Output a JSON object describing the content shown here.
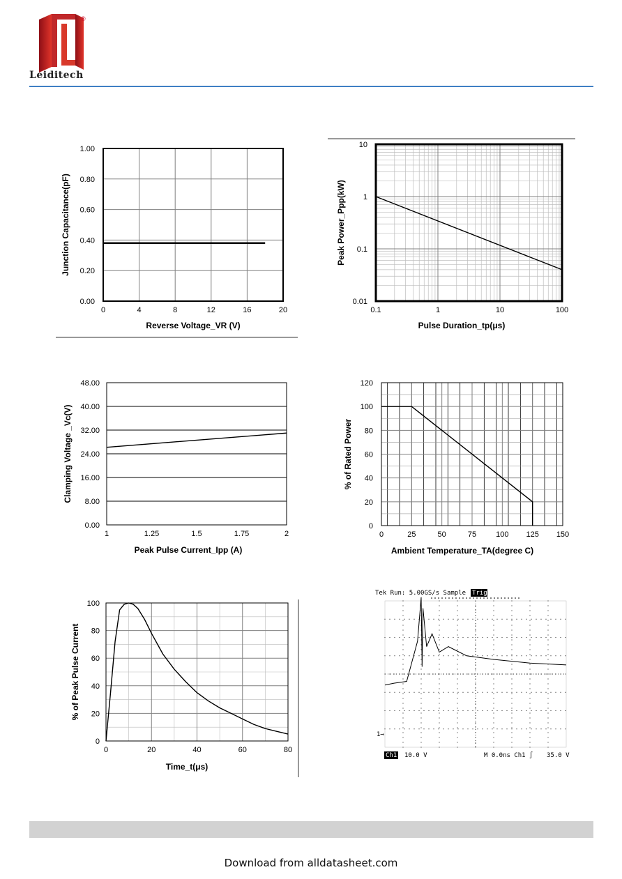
{
  "header": {
    "brand": "Leiditech",
    "registered_mark": "®",
    "logo_color": "#c8102e",
    "rule_color": "#3f7fc4"
  },
  "footer": {
    "download_text": "Download from alldatasheet.com",
    "bar_color": "#d2d2d2"
  },
  "chart_data": [
    {
      "id": "capacitance",
      "type": "line",
      "xlabel": "Reverse Voltage_VR (V)",
      "ylabel": "Junction Capacitance(pF)",
      "xlim": [
        0,
        20
      ],
      "ylim": [
        0,
        1
      ],
      "xticks": [
        0,
        4,
        8,
        12,
        16,
        20
      ],
      "xtick_labels": [
        "0",
        "4",
        "8",
        "12",
        "16",
        "20"
      ],
      "yticks": [
        0,
        0.2,
        0.4,
        0.6,
        0.8,
        1.0
      ],
      "ytick_labels": [
        "0.00",
        "0.20",
        "0.40",
        "0.60",
        "0.80",
        "1.00"
      ],
      "grid": true,
      "series": [
        {
          "x": [
            0,
            18
          ],
          "y": [
            0.38,
            0.38
          ]
        }
      ]
    },
    {
      "id": "peak_power",
      "type": "line",
      "xlabel": "Pulse Duration_tp(μs)",
      "ylabel": "Peak  Power_Ppp(kW)",
      "xscale": "log",
      "yscale": "log",
      "xlim": [
        0.1,
        100
      ],
      "ylim": [
        0.01,
        10
      ],
      "xticks": [
        0.1,
        1,
        10,
        100
      ],
      "xtick_labels": [
        "0.1",
        "1",
        "10",
        "100"
      ],
      "yticks": [
        0.01,
        0.1,
        1,
        10
      ],
      "ytick_labels": [
        "0.01",
        "0.1",
        "1",
        "10"
      ],
      "grid": true,
      "series": [
        {
          "x": [
            0.1,
            100
          ],
          "y": [
            1,
            0.04
          ]
        }
      ]
    },
    {
      "id": "clamping",
      "type": "line",
      "xlabel": "Peak Pulse Current_Ipp (A)",
      "ylabel": "Clamping Voltage _Vc(V)",
      "xlim": [
        1,
        2
      ],
      "ylim": [
        0,
        48
      ],
      "xticks": [
        1,
        1.25,
        1.5,
        1.75,
        2
      ],
      "xtick_labels": [
        "1",
        "1.25",
        "1.5",
        "1.75",
        "2"
      ],
      "yticks": [
        0,
        8,
        16,
        24,
        32,
        40,
        48
      ],
      "ytick_labels": [
        "0.00",
        "8.00",
        "16.00",
        "24.00",
        "32.00",
        "40.00",
        "48.00"
      ],
      "grid": true,
      "series": [
        {
          "x": [
            1,
            2
          ],
          "y": [
            26.2,
            31
          ]
        }
      ]
    },
    {
      "id": "derating",
      "type": "line",
      "xlabel": "Ambient  Temperature_TA(degree C)",
      "ylabel": "% of Rated Power",
      "xlim": [
        0,
        150
      ],
      "ylim": [
        0,
        120
      ],
      "xticks": [
        0,
        25,
        50,
        75,
        100,
        125,
        150
      ],
      "xtick_labels": [
        "0",
        "25",
        "50",
        "75",
        "100",
        "125",
        "150"
      ],
      "yticks": [
        0,
        20,
        40,
        60,
        80,
        100,
        120
      ],
      "ytick_labels": [
        "0",
        "20",
        "40",
        "60",
        "80",
        "100",
        "120"
      ],
      "grid": true,
      "series": [
        {
          "x": [
            0,
            25,
            125,
            125
          ],
          "y": [
            100,
            100,
            20,
            0
          ]
        }
      ]
    },
    {
      "id": "pulse_waveform",
      "type": "line",
      "xlabel": "Time_t(μs)",
      "ylabel": "% of Peak Pulse Current",
      "xlim": [
        0,
        80
      ],
      "ylim": [
        0,
        100
      ],
      "xticks": [
        0,
        20,
        40,
        60,
        80
      ],
      "xtick_labels": [
        "0",
        "20",
        "40",
        "60",
        "80"
      ],
      "yticks": [
        0,
        20,
        40,
        60,
        80,
        100
      ],
      "ytick_labels": [
        "0",
        "20",
        "40",
        "60",
        "80",
        "100"
      ],
      "grid": true,
      "series": [
        {
          "x": [
            0,
            2,
            4,
            6,
            8,
            10,
            12,
            14,
            17,
            20,
            25,
            30,
            35,
            40,
            45,
            50,
            55,
            60,
            65,
            70,
            75,
            80
          ],
          "y": [
            0,
            35,
            72,
            95,
            99,
            100,
            99,
            96,
            88,
            78,
            63,
            52,
            43,
            35,
            29,
            24,
            20,
            16,
            12,
            9,
            7,
            5
          ]
        }
      ]
    },
    {
      "id": "scope",
      "type": "line",
      "header_text": "Tek Run: 5.00GS/s   Sample",
      "header_badge": "Trig?",
      "channel_label": "Ch1",
      "channel_scale": "10.0 V",
      "time_readout": "M 0.0ns  Ch1 ∫",
      "trigger_level": "35.0 V",
      "ground_marker": "1→",
      "series": [
        {
          "x": [
            0,
            0.5,
            1.2,
            1.8,
            2.0,
            2.05,
            2.1,
            2.3,
            2.6,
            3.0,
            3.5,
            4.5,
            6,
            8,
            10
          ],
          "y": [
            -0.6,
            -0.5,
            -0.4,
            1.8,
            4.2,
            0.4,
            3.6,
            1.5,
            2.2,
            1.2,
            1.5,
            1.0,
            0.8,
            0.6,
            0.5
          ]
        }
      ]
    }
  ]
}
